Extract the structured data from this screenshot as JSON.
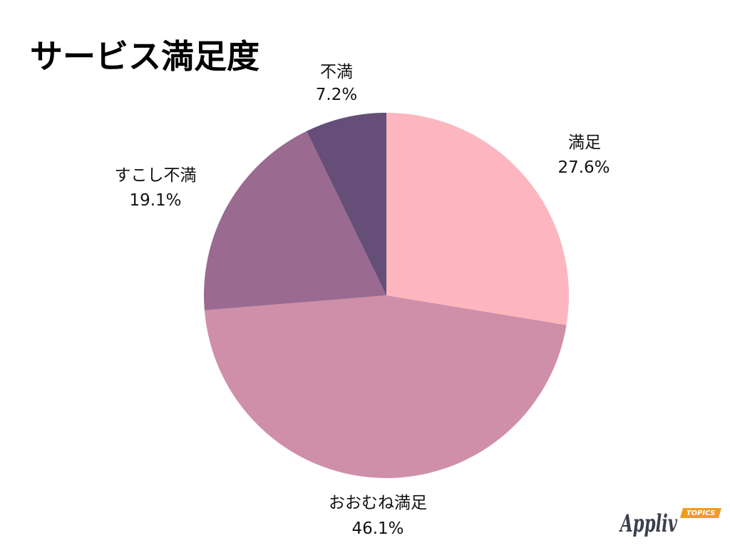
{
  "chart_data": {
    "type": "pie",
    "title": "サービス満足度",
    "categories": [
      "満足",
      "おおむね満足",
      "すこし不満",
      "不満"
    ],
    "values": [
      27.6,
      46.1,
      19.1,
      7.2
    ],
    "unit": "%",
    "colors": [
      "#FDB6BF",
      "#CF8FA9",
      "#9A6A90",
      "#654E78"
    ]
  },
  "logo": {
    "name": "Appliv",
    "badge": "TOPICS",
    "colors": {
      "text": "#3C3F4C",
      "badge": "#F29B1E"
    }
  }
}
